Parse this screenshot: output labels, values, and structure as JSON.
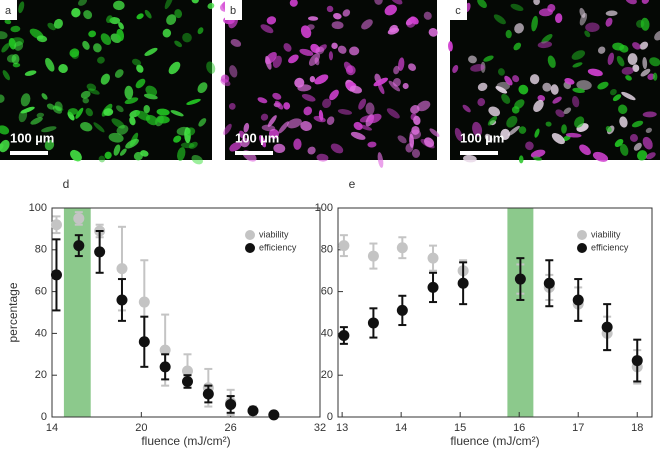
{
  "panels": [
    {
      "letter": "a",
      "scale_label": "100 µm"
    },
    {
      "letter": "b",
      "scale_label": "100 µm"
    },
    {
      "letter": "c",
      "scale_label": "100 µm"
    }
  ],
  "chart_data": [
    {
      "type": "scatter",
      "panel_label": "d",
      "x_label": "fluence (mJ/cm²)",
      "y_label": "percentage",
      "xlim": [
        14,
        32
      ],
      "ylim": [
        0,
        100
      ],
      "xticks": [
        14,
        20,
        26,
        32
      ],
      "yticks": [
        0,
        20,
        40,
        60,
        80,
        100
      ],
      "band": [
        14.8,
        16.6
      ],
      "band_color": "#8cc98c",
      "legend": "upper right",
      "series": [
        {
          "name": "viability",
          "color": "#c4c4c4",
          "x": [
            14.3,
            15.8,
            17.2,
            18.7,
            20.2,
            21.6,
            23.1,
            24.5,
            26.0,
            27.5,
            28.9
          ],
          "values": [
            92,
            95,
            89,
            71,
            55,
            32,
            22,
            14,
            7,
            3,
            1
          ],
          "errors": [
            4,
            3,
            3,
            20,
            20,
            17,
            8,
            9,
            6,
            2,
            1
          ]
        },
        {
          "name": "efficiency",
          "color": "#111111",
          "x": [
            14.3,
            15.8,
            17.2,
            18.7,
            20.2,
            21.6,
            23.1,
            24.5,
            26.0,
            27.5,
            28.9
          ],
          "values": [
            68,
            82,
            79,
            56,
            36,
            24,
            17,
            11,
            6,
            3,
            1
          ],
          "errors": [
            17,
            5,
            10,
            10,
            12,
            6,
            3,
            4,
            4,
            1,
            1
          ]
        }
      ]
    },
    {
      "type": "scatter",
      "panel_label": "e",
      "x_label": "fluence (mJ/cm²)",
      "xlim": [
        12.93,
        18.25
      ],
      "ylim": [
        0,
        100
      ],
      "xticks": [
        13,
        14,
        15,
        16,
        17,
        18
      ],
      "yticks": [
        0,
        20,
        40,
        60,
        80,
        100
      ],
      "band": [
        15.8,
        16.24
      ],
      "band_color": "#8cc98c",
      "legend": "upper right",
      "series": [
        {
          "name": "viability",
          "color": "#c4c4c4",
          "x": [
            13.03,
            13.53,
            14.02,
            14.54,
            15.05,
            16.02,
            16.51,
            17.0,
            17.49,
            18.0
          ],
          "values": [
            82,
            77,
            81,
            76,
            70,
            66,
            62,
            54,
            40,
            24
          ],
          "errors": [
            5,
            6,
            5,
            6,
            5,
            7,
            6,
            8,
            8,
            8
          ]
        },
        {
          "name": "efficiency",
          "color": "#111111",
          "x": [
            13.03,
            13.53,
            14.02,
            14.54,
            15.05,
            16.02,
            16.51,
            17.0,
            17.49,
            18.0
          ],
          "values": [
            39,
            45,
            51,
            62,
            64,
            66,
            64,
            56,
            43,
            27
          ],
          "errors": [
            4,
            7,
            7,
            7,
            10,
            10,
            11,
            10,
            11,
            10
          ]
        }
      ]
    }
  ]
}
